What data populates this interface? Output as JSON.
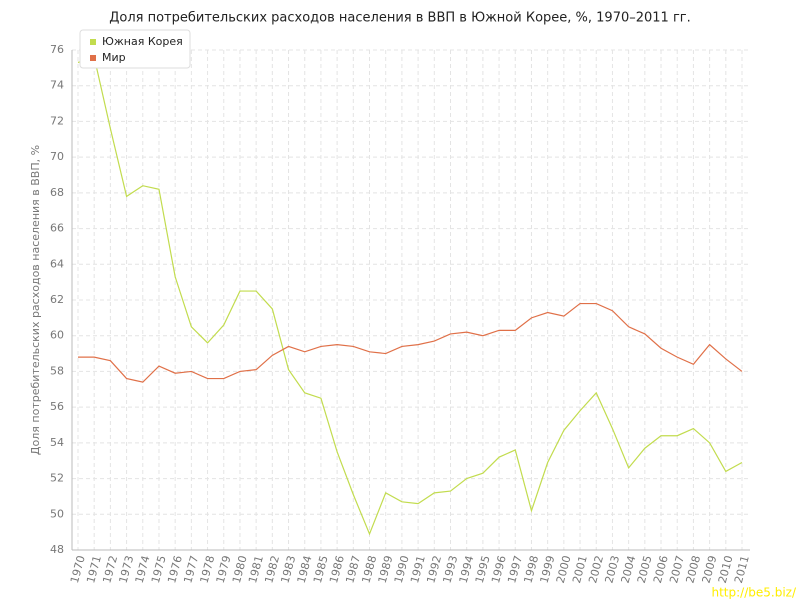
{
  "chart_data": {
    "type": "line",
    "title": "Доля потребительских расходов населения в ВВП в Южной Корее, %, 1970–2011 гг.",
    "y_label": "Доля потребительских расходов населения в ВВП, %",
    "watermark": "http://be5.biz/",
    "categories": [
      "1970",
      "1971",
      "1972",
      "1973",
      "1974",
      "1975",
      "1976",
      "1977",
      "1978",
      "1979",
      "1980",
      "1981",
      "1982",
      "1983",
      "1984",
      "1985",
      "1986",
      "1987",
      "1988",
      "1989",
      "1990",
      "1991",
      "1992",
      "1993",
      "1994",
      "1995",
      "1996",
      "1997",
      "1998",
      "1999",
      "2000",
      "2001",
      "2002",
      "2003",
      "2004",
      "2005",
      "2006",
      "2007",
      "2008",
      "2009",
      "2010",
      "2011"
    ],
    "series": [
      {
        "name": "Южная Корея",
        "color": "#c2dc4e",
        "values": [
          75.3,
          75.6,
          71.6,
          67.8,
          68.4,
          68.2,
          63.3,
          60.5,
          59.6,
          60.6,
          62.5,
          62.5,
          61.5,
          58.1,
          56.8,
          56.5,
          53.5,
          51.1,
          48.9,
          51.2,
          50.7,
          50.6,
          51.2,
          51.3,
          52.0,
          52.3,
          53.2,
          53.6,
          50.2,
          52.9,
          54.7,
          55.8,
          56.8,
          54.8,
          52.6,
          53.7,
          54.4,
          54.4,
          54.8,
          54.0,
          52.4,
          52.9
        ]
      },
      {
        "name": "Мир",
        "color": "#e07048",
        "values": [
          58.8,
          58.8,
          58.6,
          57.6,
          57.4,
          58.3,
          57.9,
          58.0,
          57.6,
          57.6,
          58.0,
          58.1,
          58.9,
          59.4,
          59.1,
          59.4,
          59.5,
          59.4,
          59.1,
          59.0,
          59.4,
          59.5,
          59.7,
          60.1,
          60.2,
          60.0,
          60.3,
          60.3,
          61.0,
          61.3,
          61.1,
          61.8,
          61.8,
          61.4,
          60.5,
          60.1,
          59.3,
          58.8,
          58.4,
          59.5,
          58.7,
          58.0
        ]
      }
    ],
    "ylim": [
      48,
      76
    ],
    "yticks": [
      48,
      50,
      52,
      54,
      56,
      58,
      60,
      62,
      64,
      66,
      68,
      70,
      72,
      74,
      76
    ],
    "grid": true,
    "legend": "top-left"
  }
}
